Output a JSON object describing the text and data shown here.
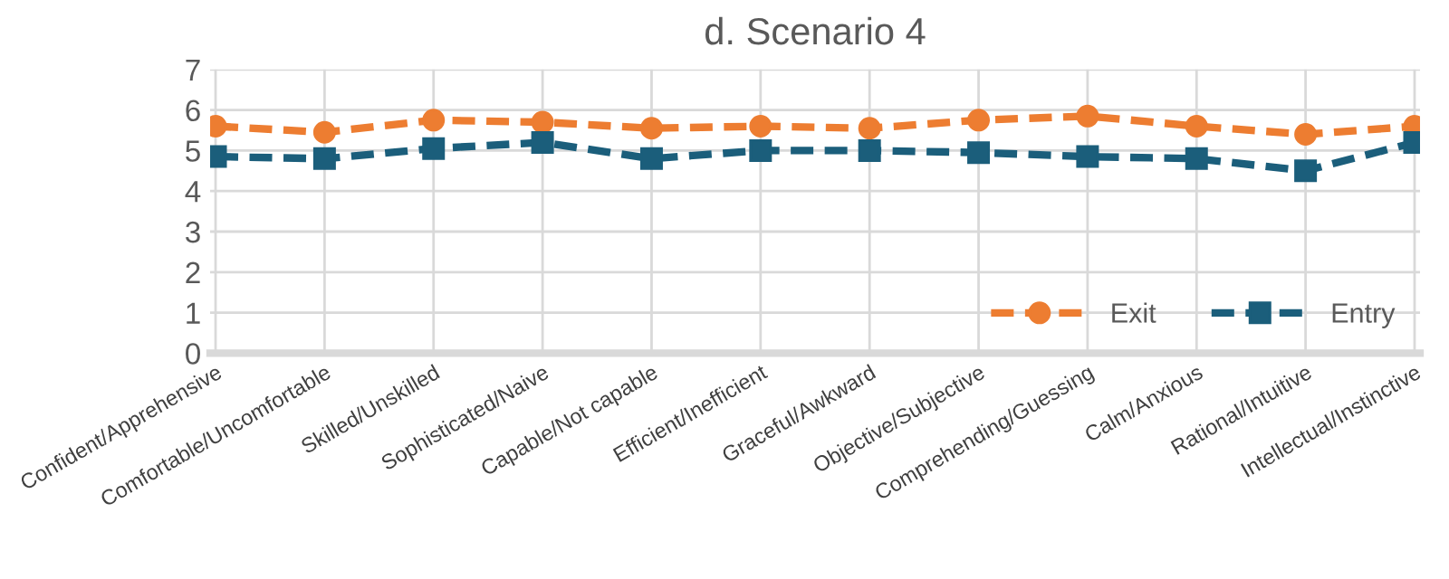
{
  "chart_data": {
    "type": "line",
    "title": "d. Scenario 4",
    "categories": [
      "Confident/Apprehensive",
      "Comfortable/Uncomfortable",
      "Skilled/Unskilled",
      "Sophisticated/Naive",
      "Capable/Not capable",
      "Efficient/Inefficient",
      "Graceful/Awkward",
      "Objective/Subjective",
      "Comprehending/Guessing",
      "Calm/Anxious",
      "Rational/Intuitive",
      "Intellectual/Instinctive"
    ],
    "series": [
      {
        "name": "Exit",
        "color": "#ed7d31",
        "marker": "circle",
        "values": [
          5.6,
          5.45,
          5.75,
          5.7,
          5.55,
          5.6,
          5.55,
          5.75,
          5.85,
          5.6,
          5.4,
          5.6
        ]
      },
      {
        "name": "Entry",
        "color": "#1b5e7b",
        "marker": "square",
        "values": [
          4.85,
          4.8,
          5.05,
          5.2,
          4.8,
          5.0,
          5.0,
          4.95,
          4.85,
          4.8,
          4.5,
          5.2
        ]
      }
    ],
    "ylim": [
      0,
      7
    ],
    "yticks": [
      0,
      1,
      2,
      3,
      4,
      5,
      6,
      7
    ],
    "grid": true,
    "legend": "bottom right",
    "line_style": "dashed"
  }
}
